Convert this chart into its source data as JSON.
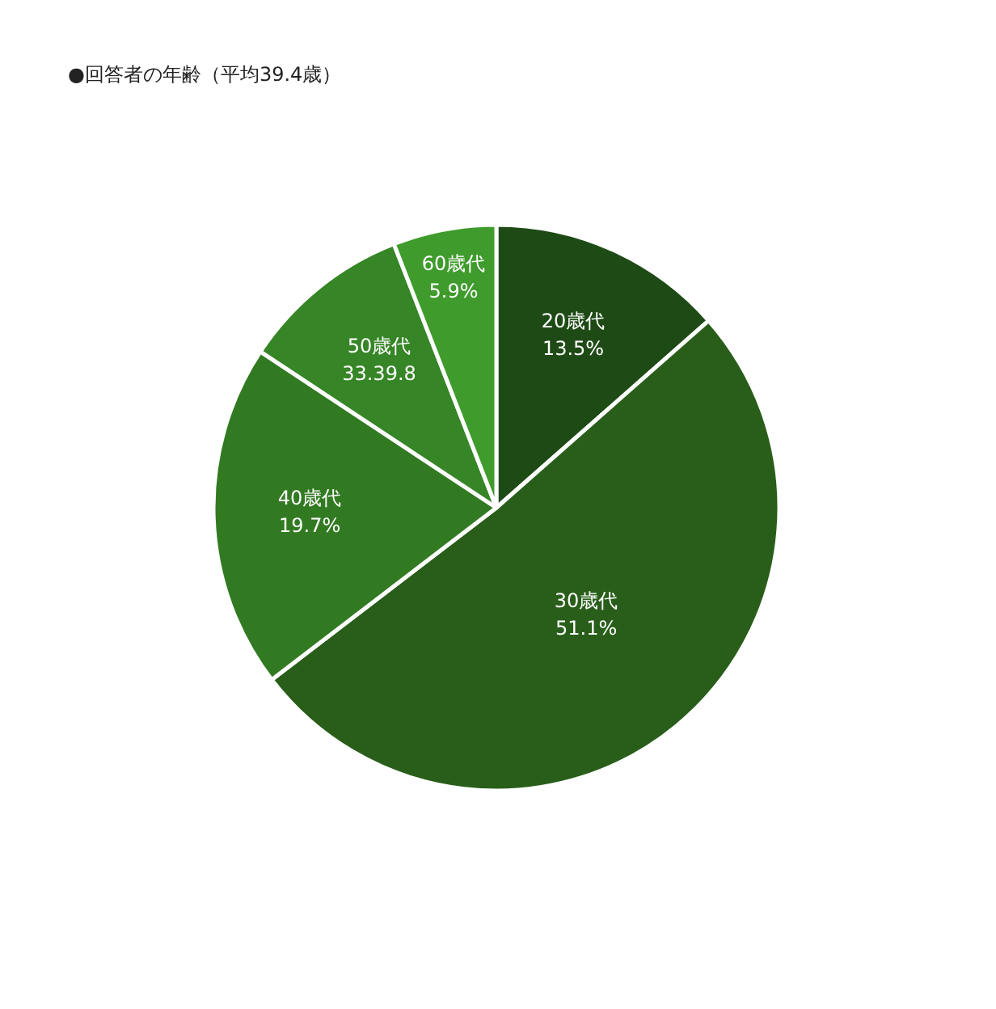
{
  "chart_data": {
    "type": "pie",
    "title": "●回答者の年齢（平均39.4歳）",
    "categories": [
      "20歳代",
      "30歳代",
      "40歳代",
      "50歳代",
      "60歳代"
    ],
    "values": [
      13.5,
      51.1,
      19.7,
      9.8,
      5.9
    ],
    "value_labels": [
      "13.5%",
      "51.1%",
      "19.7%",
      "33.39.8",
      "5.9%"
    ],
    "colors": [
      "#1e4a15",
      "#285e1a",
      "#327a22",
      "#368526",
      "#3f9b2c"
    ],
    "legend": false
  }
}
